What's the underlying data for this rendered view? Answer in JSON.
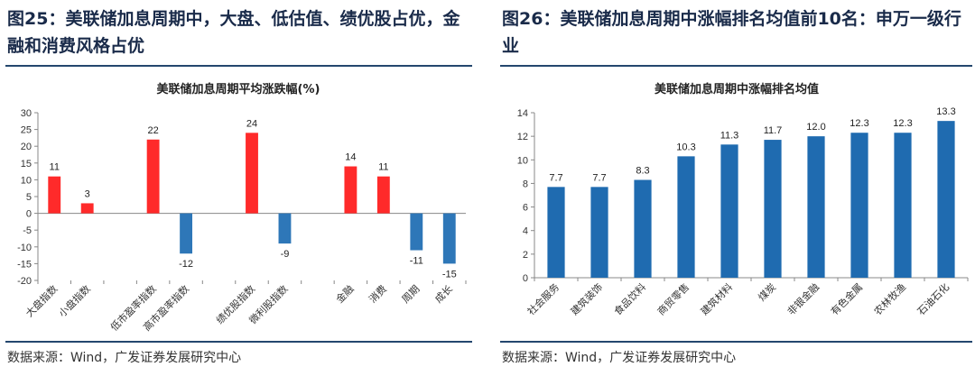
{
  "panels": [
    {
      "heading": "图25：美联储加息周期中，大盘、低估值、绩优股占优，金融和消费风格占优",
      "source": "数据来源：Wind，广发证券发展研究中心",
      "chart_data": {
        "type": "bar",
        "title": "美联储加息周期平均涨跌幅(%)",
        "categories": [
          "大盘指数",
          "小盘指数",
          "",
          "低市盈率指数",
          "高市盈率指数",
          "",
          "绩优股指数",
          "微利股指数",
          "",
          "金融",
          "消费",
          "周期",
          "成长"
        ],
        "values": [
          11,
          3,
          null,
          22,
          -12,
          null,
          24,
          -9,
          null,
          14,
          11,
          -11,
          -15
        ],
        "labels": [
          "11",
          "3",
          "",
          "22",
          "-12",
          "",
          "24",
          "-9",
          "",
          "14",
          "11",
          "-11",
          "-15"
        ],
        "ylim": [
          -20,
          30
        ],
        "yticks": [
          -20,
          -15,
          -10,
          -5,
          0,
          5,
          10,
          15,
          20,
          25,
          30
        ],
        "colors": {
          "positive": "#ff2a2a",
          "negative": "#2e77b8"
        },
        "grid": false,
        "legend": "none"
      }
    },
    {
      "heading": "图26：美联储加息周期中涨幅排名均值前10名：申万一级行业",
      "source": "数据来源：Wind，广发证券发展研究中心",
      "chart_data": {
        "type": "bar",
        "title": "美联储加息周期中涨幅排名均值",
        "categories": [
          "社会服务",
          "建筑装饰",
          "食品饮料",
          "商贸零售",
          "建筑材料",
          "煤炭",
          "非银金融",
          "有色金属",
          "农林牧渔",
          "石油石化"
        ],
        "values": [
          7.7,
          7.7,
          8.3,
          10.3,
          11.3,
          11.7,
          12.0,
          12.3,
          12.3,
          13.3
        ],
        "labels": [
          "7.7",
          "7.7",
          "8.3",
          "10.3",
          "11.3",
          "11.7",
          "12.0",
          "12.3",
          "12.3",
          "13.3"
        ],
        "ylim": [
          0,
          14
        ],
        "yticks": [
          0,
          2,
          4,
          6,
          8,
          10,
          12,
          14
        ],
        "colors": {
          "bar": "#1f6bb0"
        },
        "grid": false,
        "legend": "none"
      }
    }
  ]
}
